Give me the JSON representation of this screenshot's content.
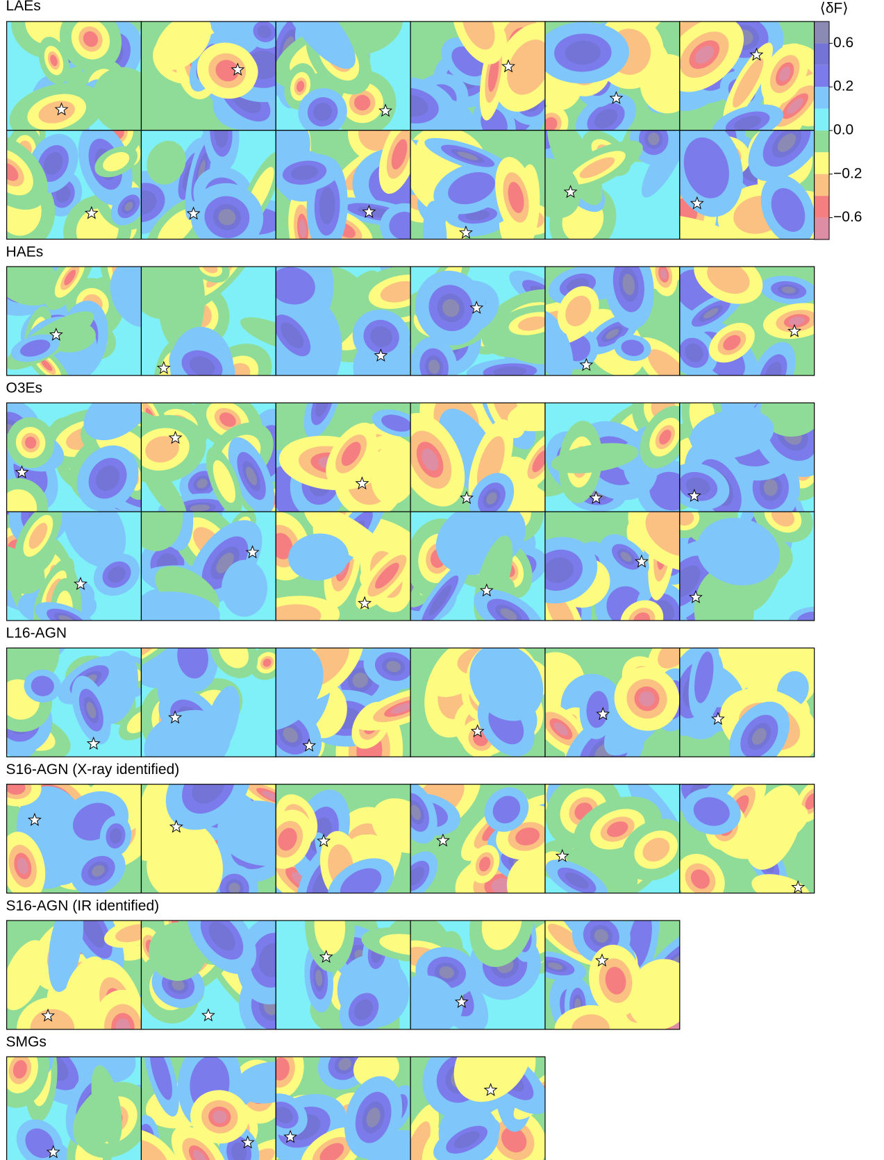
{
  "chart_data": {
    "type": "contour-grid",
    "colorbar": {
      "label": "⟨δF⟩",
      "levels": [
        1.0,
        0.6,
        0.4,
        0.2,
        0.1,
        0.0,
        -0.1,
        -0.2,
        -0.4,
        -0.6,
        -1.0
      ],
      "colors": [
        "#8b8ab5",
        "#7474d6",
        "#7b7bec",
        "#7fc6fb",
        "#80f0f8",
        "#8fdc98",
        "#fdfb80",
        "#fbc182",
        "#f57f80",
        "#de8ea4"
      ],
      "ticks": [
        0.6,
        0.2,
        {
          "value": 0,
          "label": "0.0"
        },
        {
          "value": -0.2,
          "label": "−0.2"
        },
        {
          "value": -0.6,
          "label": "−0.6"
        }
      ]
    },
    "groups": [
      {
        "title": "LAEs",
        "panels": 12
      },
      {
        "title": "HAEs",
        "panels": 6
      },
      {
        "title": "O3Es",
        "panels": 12
      },
      {
        "title": "L16-AGN",
        "panels": 6
      },
      {
        "title": "S16-AGN (X-ray identified)",
        "panels": 6
      },
      {
        "title": "S16-AGN (IR identified)",
        "panels": 5
      },
      {
        "title": "SMGs",
        "panels": 4
      }
    ]
  }
}
